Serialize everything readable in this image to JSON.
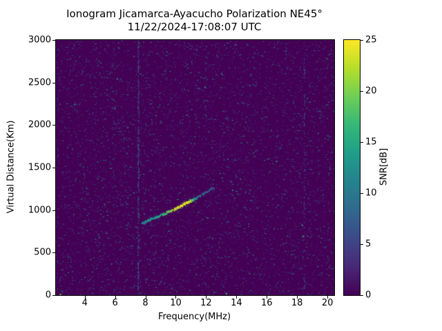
{
  "figure": {
    "title": "Ionogram Jicamarca-Ayacucho Polarization NE45°",
    "subtitle": "11/22/2024-17:08:07 UTC"
  },
  "chart_data": {
    "type": "heatmap",
    "title": "Ionogram Jicamarca-Ayacucho Polarization NE45°",
    "subtitle": "11/22/2024-17:08:07 UTC",
    "xlabel": "Frequency(MHz)",
    "ylabel": "Virtual Distance(Km)",
    "xlim": [
      2.1,
      20.45
    ],
    "ylim": [
      0,
      3000
    ],
    "xticks": [
      4,
      6,
      8,
      10,
      12,
      14,
      16,
      18,
      20
    ],
    "yticks": [
      0,
      500,
      1000,
      1500,
      2000,
      2500,
      3000
    ],
    "grid": false,
    "colorbar": {
      "label": "SNR[dB]",
      "min": 0,
      "max": 25,
      "ticks": [
        0,
        5,
        10,
        15,
        20,
        25
      ],
      "colormap": "viridis",
      "colormap_colors": [
        "#440154",
        "#482878",
        "#3e4989",
        "#31688e",
        "#26828e",
        "#1f9e89",
        "#35b779",
        "#6ece58",
        "#b5de2b",
        "#fde725"
      ]
    },
    "background_snr": 0,
    "noise": {
      "points": 9000,
      "snr_low": 1,
      "snr_high": 15,
      "seed": 42
    },
    "interference_lines": [
      {
        "freq": 7.5,
        "snr_max": 11,
        "density": 0.5
      },
      {
        "freq": 18.45,
        "snr_max": 8,
        "density": 0.2
      }
    ],
    "echo_trace": [
      [
        7.75,
        845,
        10
      ],
      [
        7.9,
        860,
        12
      ],
      [
        8.1,
        880,
        13
      ],
      [
        8.35,
        900,
        14
      ],
      [
        8.6,
        915,
        13
      ],
      [
        8.85,
        935,
        15
      ],
      [
        9.1,
        955,
        16
      ],
      [
        9.35,
        975,
        18
      ],
      [
        9.6,
        995,
        20
      ],
      [
        9.85,
        1015,
        23
      ],
      [
        10.1,
        1035,
        24
      ],
      [
        10.3,
        1055,
        25
      ],
      [
        10.5,
        1075,
        24
      ],
      [
        10.7,
        1095,
        25
      ],
      [
        10.9,
        1110,
        23
      ],
      [
        11.05,
        1125,
        18
      ],
      [
        11.3,
        1150,
        12
      ],
      [
        11.6,
        1180,
        9
      ],
      [
        11.9,
        1210,
        8
      ],
      [
        12.2,
        1245,
        7
      ],
      [
        12.5,
        1275,
        6
      ]
    ],
    "hot_pixels": [
      [
        2.35,
        15,
        20
      ],
      [
        13.3,
        25,
        18
      ],
      [
        18.35,
        700,
        16
      ],
      [
        18.3,
        830,
        15
      ],
      [
        6.1,
        2550,
        14
      ],
      [
        3.3,
        2250,
        14
      ],
      [
        16.6,
        1580,
        14
      ],
      [
        11.9,
        2450,
        14
      ]
    ]
  }
}
